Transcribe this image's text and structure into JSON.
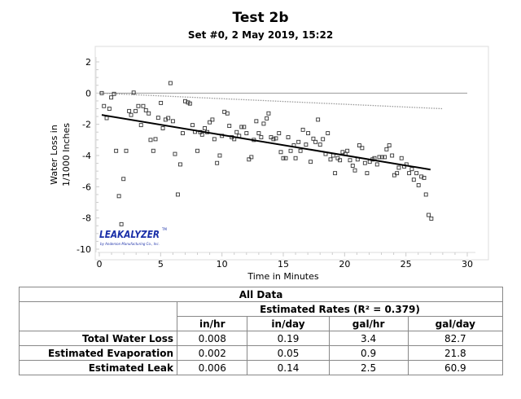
{
  "chart_data": {
    "type": "scatter",
    "title": "Test 2b",
    "subtitle": "Set #0, 2 May 2019, 15:22",
    "xlabel": "Time in Minutes",
    "ylabel": [
      "Water Loss in",
      "1/1000 Inches"
    ],
    "xlim": [
      0,
      30
    ],
    "ylim": [
      -10,
      2
    ],
    "xticks": [
      0,
      5,
      10,
      15,
      20,
      25,
      30
    ],
    "yticks": [
      2,
      0,
      -2,
      -4,
      -6,
      -8,
      -10
    ],
    "grid": false,
    "points": [
      [
        0.2,
        0
      ],
      [
        0.38,
        -0.83
      ],
      [
        0.6,
        -1.6
      ],
      [
        0.82,
        -1.0
      ],
      [
        0.97,
        -0.28
      ],
      [
        1.2,
        -0.05
      ],
      [
        1.37,
        -3.7
      ],
      [
        1.6,
        -6.6
      ],
      [
        1.8,
        -8.4
      ],
      [
        1.97,
        -5.5
      ],
      [
        2.19,
        -3.7
      ],
      [
        2.43,
        -1.15
      ],
      [
        2.59,
        -1.4
      ],
      [
        2.8,
        0.03
      ],
      [
        2.96,
        -1.15
      ],
      [
        3.18,
        -0.83
      ],
      [
        3.4,
        -2.05
      ],
      [
        3.58,
        -0.83
      ],
      [
        3.8,
        -1.1
      ],
      [
        4.03,
        -1.3
      ],
      [
        4.18,
        -3.0
      ],
      [
        4.4,
        -3.7
      ],
      [
        4.58,
        -2.95
      ],
      [
        4.8,
        -1.58
      ],
      [
        5.02,
        -0.63
      ],
      [
        5.18,
        -2.25
      ],
      [
        5.4,
        -1.7
      ],
      [
        5.62,
        -1.6
      ],
      [
        5.8,
        0.64
      ],
      [
        6.0,
        -1.8
      ],
      [
        6.17,
        -3.9
      ],
      [
        6.4,
        -6.5
      ],
      [
        6.6,
        -4.57
      ],
      [
        6.8,
        -2.57
      ],
      [
        7.0,
        -0.52
      ],
      [
        7.23,
        -0.6
      ],
      [
        7.39,
        -0.67
      ],
      [
        7.6,
        -2.05
      ],
      [
        7.8,
        -2.48
      ],
      [
        8.0,
        -3.7
      ],
      [
        8.23,
        -2.5
      ],
      [
        8.38,
        -2.66
      ],
      [
        8.6,
        -2.25
      ],
      [
        8.8,
        -2.5
      ],
      [
        9.0,
        -1.87
      ],
      [
        9.22,
        -1.7
      ],
      [
        9.38,
        -2.95
      ],
      [
        9.6,
        -4.48
      ],
      [
        9.82,
        -4.0
      ],
      [
        10.0,
        -2.74
      ],
      [
        10.2,
        -1.2
      ],
      [
        10.44,
        -1.3
      ],
      [
        10.6,
        -2.1
      ],
      [
        10.8,
        -2.83
      ],
      [
        11.0,
        -2.95
      ],
      [
        11.2,
        -2.5
      ],
      [
        11.4,
        -2.74
      ],
      [
        11.6,
        -2.17
      ],
      [
        11.8,
        -2.17
      ],
      [
        12.0,
        -2.57
      ],
      [
        12.2,
        -4.25
      ],
      [
        12.4,
        -4.1
      ],
      [
        12.6,
        -3.0
      ],
      [
        12.8,
        -1.8
      ],
      [
        13.0,
        -2.57
      ],
      [
        13.2,
        -2.83
      ],
      [
        13.4,
        -1.96
      ],
      [
        13.65,
        -1.62
      ],
      [
        13.8,
        -1.3
      ],
      [
        14.0,
        -2.83
      ],
      [
        14.2,
        -2.95
      ],
      [
        14.4,
        -2.9
      ],
      [
        14.65,
        -2.57
      ],
      [
        14.8,
        -3.78
      ],
      [
        15.0,
        -4.17
      ],
      [
        15.2,
        -4.17
      ],
      [
        15.4,
        -2.83
      ],
      [
        15.6,
        -3.7
      ],
      [
        15.86,
        -3.35
      ],
      [
        16.0,
        -4.17
      ],
      [
        16.24,
        -3.13
      ],
      [
        16.4,
        -3.7
      ],
      [
        16.6,
        -2.35
      ],
      [
        16.85,
        -3.3
      ],
      [
        17.03,
        -2.57
      ],
      [
        17.23,
        -4.4
      ],
      [
        17.45,
        -2.92
      ],
      [
        17.63,
        -3.13
      ],
      [
        17.83,
        -1.7
      ],
      [
        18.0,
        -3.3
      ],
      [
        18.23,
        -2.95
      ],
      [
        18.45,
        -3.9
      ],
      [
        18.63,
        -2.57
      ],
      [
        18.85,
        -4.25
      ],
      [
        19.07,
        -4.0
      ],
      [
        19.22,
        -5.13
      ],
      [
        19.44,
        -4.17
      ],
      [
        19.62,
        -4.3
      ],
      [
        19.84,
        -3.78
      ],
      [
        20.06,
        -3.9
      ],
      [
        20.22,
        -3.7
      ],
      [
        20.44,
        -4.3
      ],
      [
        20.66,
        -4.65
      ],
      [
        20.84,
        -4.95
      ],
      [
        21.06,
        -4.25
      ],
      [
        21.2,
        -3.35
      ],
      [
        21.43,
        -3.52
      ],
      [
        21.66,
        -4.48
      ],
      [
        21.83,
        -5.13
      ],
      [
        22.05,
        -4.4
      ],
      [
        22.28,
        -4.25
      ],
      [
        22.43,
        -4.17
      ],
      [
        22.65,
        -4.57
      ],
      [
        22.83,
        -4.1
      ],
      [
        23.05,
        -4.1
      ],
      [
        23.27,
        -4.1
      ],
      [
        23.42,
        -3.6
      ],
      [
        23.64,
        -3.35
      ],
      [
        23.87,
        -4.0
      ],
      [
        24.05,
        -5.26
      ],
      [
        24.27,
        -5.13
      ],
      [
        24.42,
        -4.78
      ],
      [
        24.64,
        -4.17
      ],
      [
        24.86,
        -4.7
      ],
      [
        25.04,
        -4.57
      ],
      [
        25.26,
        -5.13
      ],
      [
        25.48,
        -4.87
      ],
      [
        25.64,
        -5.55
      ],
      [
        25.86,
        -5.13
      ],
      [
        26.03,
        -5.9
      ],
      [
        26.26,
        -5.35
      ],
      [
        26.48,
        -5.43
      ],
      [
        26.63,
        -6.5
      ],
      [
        26.85,
        -7.81
      ],
      [
        27.07,
        -8.04
      ]
    ],
    "regression_line": [
      [
        0.2,
        -1.4
      ],
      [
        27.0,
        -4.9
      ]
    ],
    "evaporation_line": [
      [
        0,
        0
      ],
      [
        28,
        -1.0
      ]
    ],
    "zero_line": [
      [
        0,
        0
      ],
      [
        30,
        0
      ]
    ],
    "colors": {
      "points": "#333333",
      "regression": "#000000",
      "evaporation": "#999999",
      "zero": "#999999"
    }
  },
  "logo": {
    "name": "LEAKALYZER",
    "tagline": "by Anderson Manufacturing Co., Inc.",
    "tm": "TM",
    "color": "#1a2fa8"
  },
  "table": {
    "title": "All Data",
    "rates_header": "Estimated Rates (R² = 0.379)",
    "columns": [
      "in/hr",
      "in/day",
      "gal/hr",
      "gal/day"
    ],
    "rows": [
      {
        "label": "Total Water Loss",
        "values": [
          "0.008",
          "0.19",
          "3.4",
          "82.7"
        ]
      },
      {
        "label": "Estimated Evaporation",
        "values": [
          "0.002",
          "0.05",
          "0.9",
          "21.8"
        ]
      },
      {
        "label": "Estimated Leak",
        "values": [
          "0.006",
          "0.14",
          "2.5",
          "60.9"
        ]
      }
    ]
  }
}
